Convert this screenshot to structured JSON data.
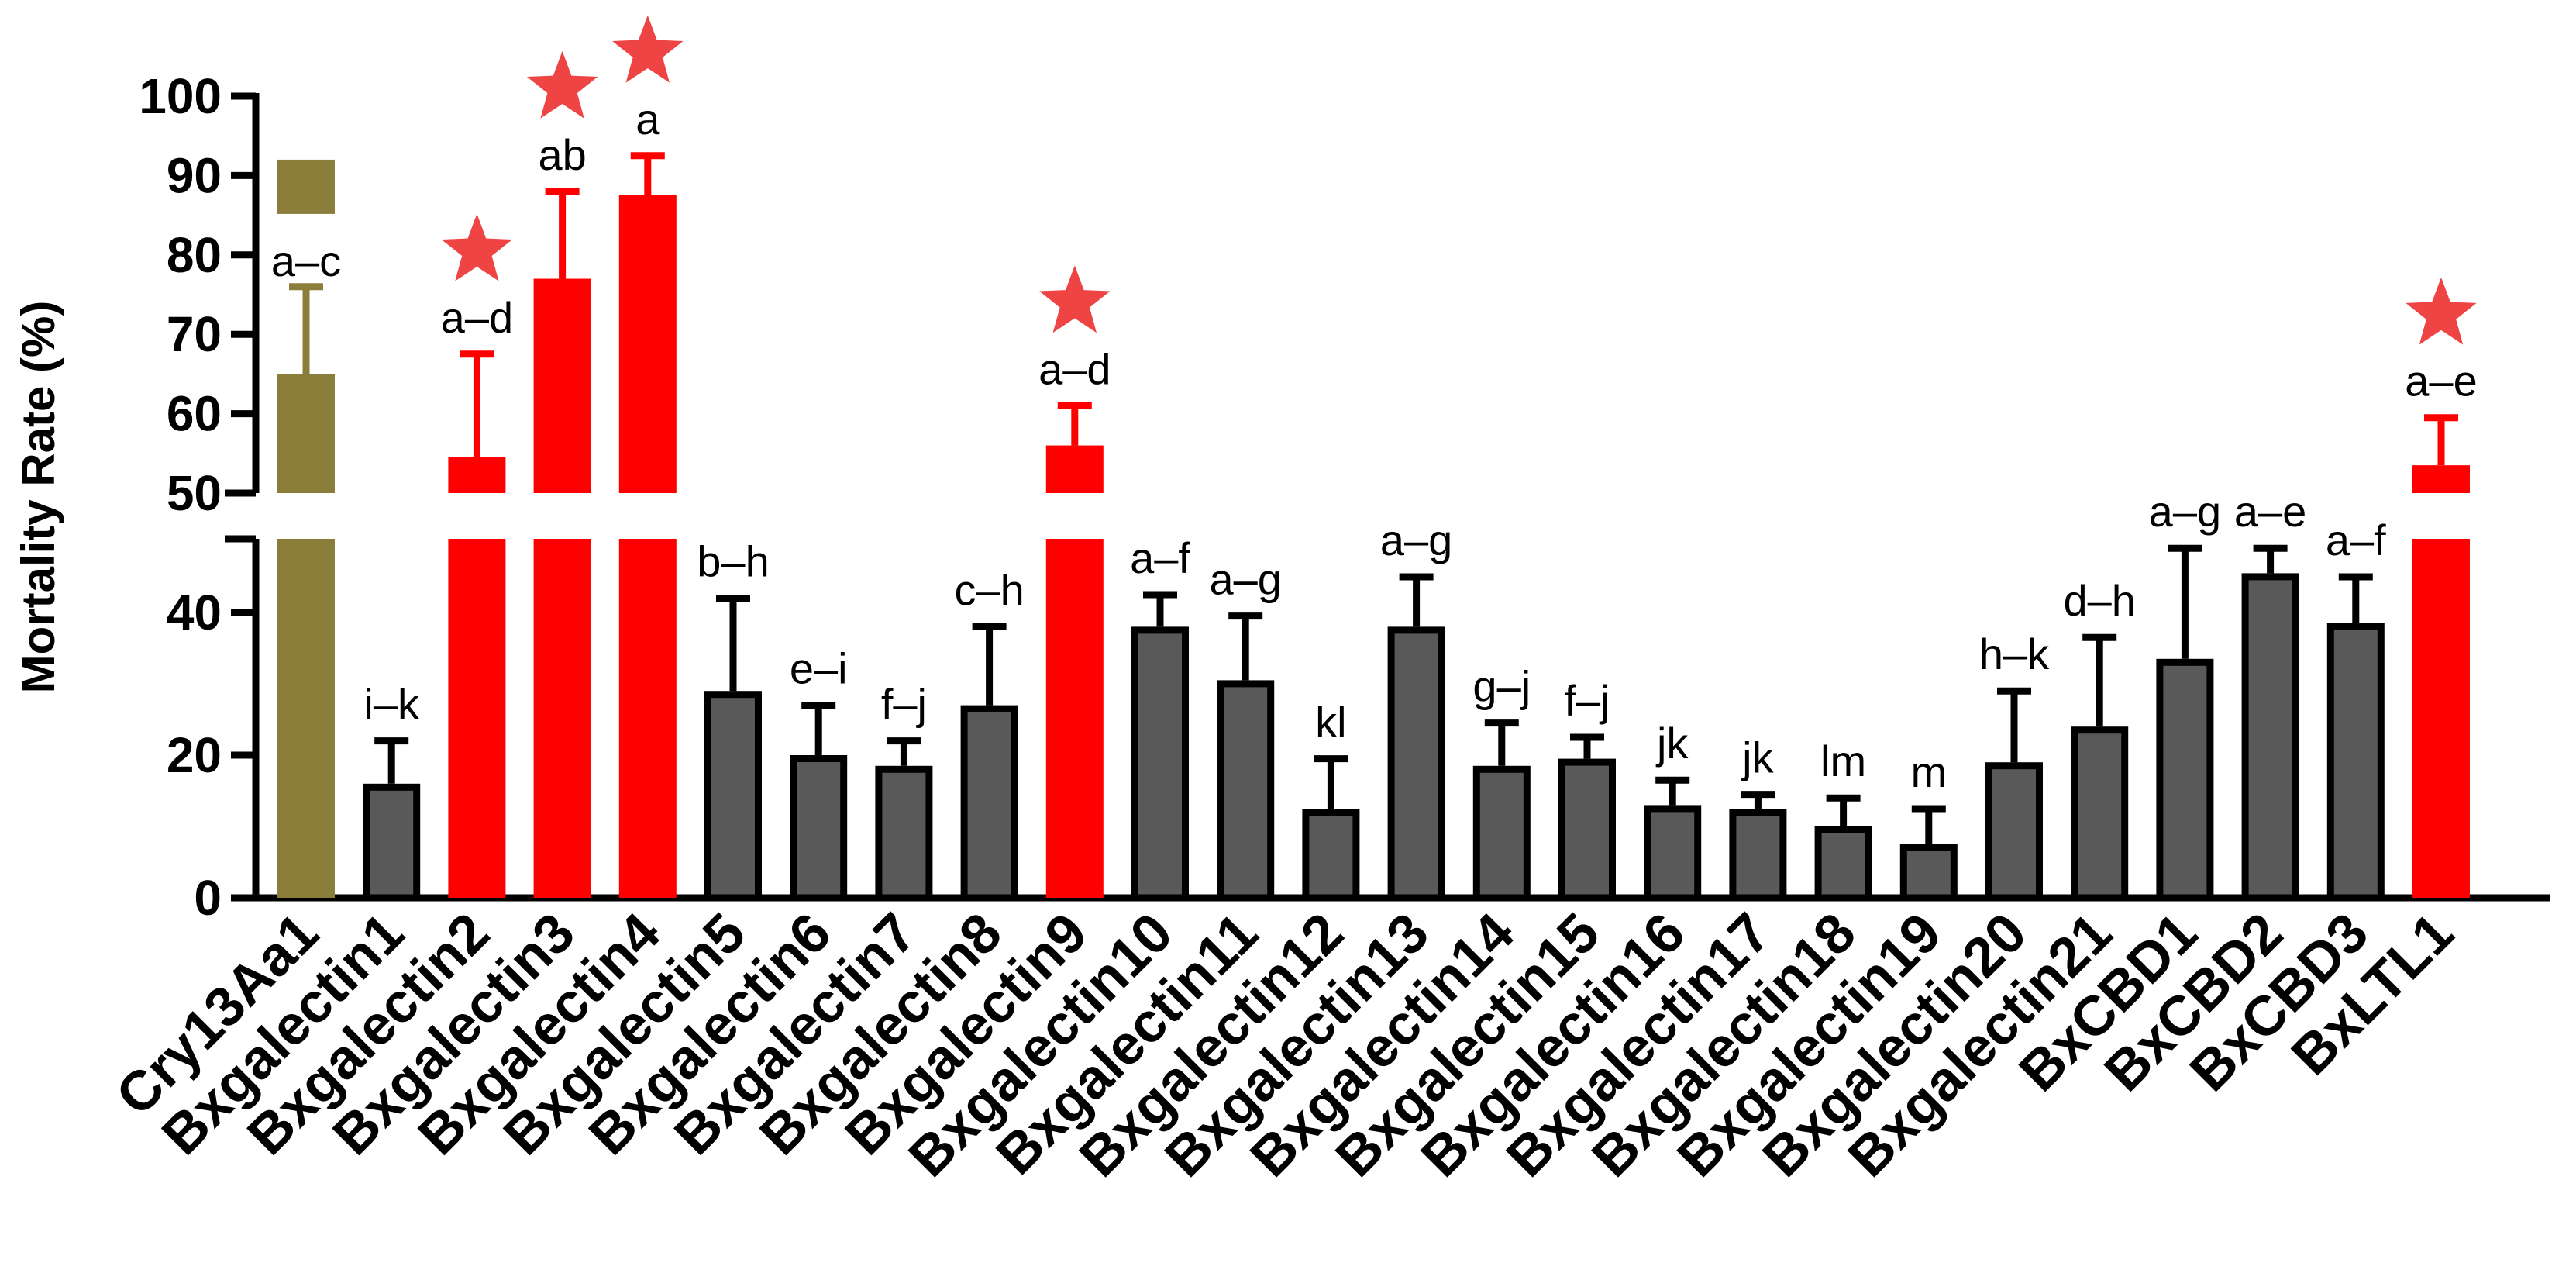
{
  "chart_data": {
    "type": "bar",
    "title": "",
    "xlabel": "",
    "ylabel": "Mortality Rate (%)",
    "y_axis_break": [
      50,
      50
    ],
    "ylim_lower": [
      0,
      50
    ],
    "ylim_upper": [
      50,
      100
    ],
    "yticks_lower": [
      "0",
      "20",
      "40"
    ],
    "yticks_upper": [
      "50",
      "60",
      "70",
      "80",
      "90",
      "100"
    ],
    "grid": false,
    "legend": "none",
    "colors": {
      "control": "#8B7D3A",
      "highlight": "#FF0000",
      "normal": "#595959",
      "star": "#EE4444"
    },
    "categories": [
      "Cry13Aa1",
      "Bxgalectin1",
      "Bxgalectin2",
      "Bxgalectin3",
      "Bxgalectin4",
      "Bxgalectin5",
      "Bxgalectin6",
      "Bxgalectin7",
      "Bxgalectin8",
      "Bxgalectin9",
      "Bxgalectin10",
      "Bxgalectin11",
      "Bxgalectin12",
      "Bxgalectin13",
      "Bxgalectin14",
      "Bxgalectin15",
      "Bxgalectin16",
      "Bxgalectin17",
      "Bxgalectin18",
      "Bxgalectin19",
      "Bxgalectin20",
      "Bxgalectin21",
      "BxCBD1",
      "BxCBD2",
      "BxCBD3",
      "BxLTL1"
    ],
    "values": [
      65,
      16,
      54.5,
      77,
      87.5,
      29,
      20,
      18.5,
      27,
      56,
      38,
      30.5,
      12.5,
      38,
      18.5,
      19.5,
      13,
      12.5,
      10,
      7.5,
      19,
      24,
      33.5,
      45.5,
      38.5,
      53.5
    ],
    "errors": [
      11,
      6,
      13,
      11,
      5,
      13,
      7,
      3.5,
      11,
      5,
      4.5,
      9,
      7,
      7,
      6,
      3,
      3.5,
      2,
      4,
      5,
      10,
      12.5,
      15.5,
      3.5,
      6.5,
      6
    ],
    "significance": [
      "a–c",
      "i–k",
      "a–d",
      "ab",
      "a",
      "b–h",
      "e–i",
      "f–j",
      "c–h",
      "a–d",
      "a–f",
      "a–g",
      "kl",
      "a–g",
      "g–j",
      "f–j",
      "jk",
      "jk",
      "lm",
      "m",
      "h–k",
      "d–h",
      "a–g",
      "a–e",
      "a–f",
      "a–e"
    ],
    "bar_color_keys": [
      "control",
      "normal",
      "highlight",
      "highlight",
      "highlight",
      "normal",
      "normal",
      "normal",
      "normal",
      "highlight",
      "normal",
      "normal",
      "normal",
      "normal",
      "normal",
      "normal",
      "normal",
      "normal",
      "normal",
      "normal",
      "normal",
      "normal",
      "normal",
      "normal",
      "normal",
      "highlight"
    ],
    "starred": [
      false,
      false,
      true,
      true,
      true,
      false,
      false,
      false,
      false,
      true,
      false,
      false,
      false,
      false,
      false,
      false,
      false,
      false,
      false,
      false,
      false,
      false,
      false,
      false,
      false,
      true
    ],
    "control_marker_value": 92
  }
}
